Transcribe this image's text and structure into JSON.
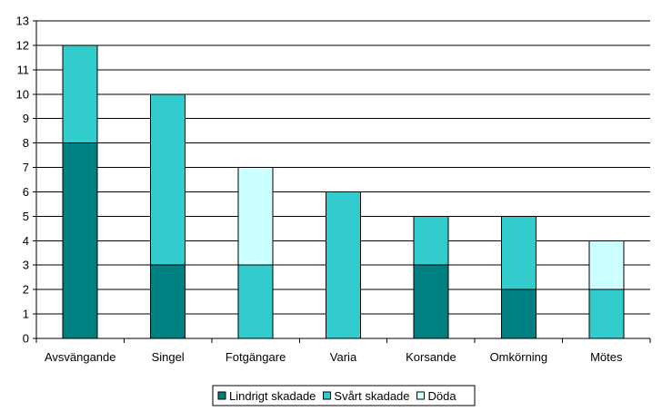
{
  "chart_data": {
    "type": "bar",
    "stacked": true,
    "title": "",
    "xlabel": "",
    "ylabel": "",
    "ylim": [
      0,
      13
    ],
    "yticks": [
      0,
      1,
      2,
      3,
      4,
      5,
      6,
      7,
      8,
      9,
      10,
      11,
      12,
      13
    ],
    "grid": true,
    "legend_position": "bottom",
    "categories": [
      "Avsvängande",
      "Singel",
      "Fotgängare",
      "Varia",
      "Korsande",
      "Omkörning",
      "Mötes"
    ],
    "series": [
      {
        "name": "Lindrigt skadade",
        "color": "#008080",
        "values": [
          8,
          3,
          0,
          0,
          3,
          2,
          0
        ]
      },
      {
        "name": "Svårt skadade",
        "color": "#33CCCC",
        "values": [
          4,
          7,
          3,
          6,
          2,
          3,
          2
        ]
      },
      {
        "name": "Döda",
        "color": "#CCFFFF",
        "values": [
          0,
          0,
          4,
          0,
          0,
          0,
          2
        ]
      }
    ]
  }
}
